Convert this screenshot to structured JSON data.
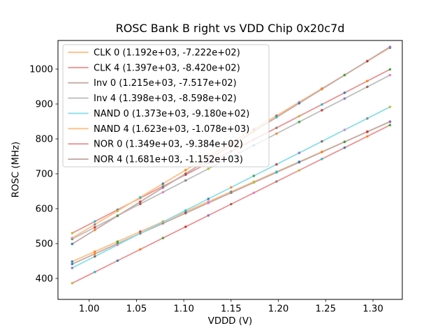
{
  "figure": {
    "title": "ROSC Bank B right vs VDD Chip 0x20c7d",
    "xlabel": "VDDD (V)",
    "ylabel": "ROSC (MHz)"
  },
  "chart_data": {
    "type": "line",
    "title": "ROSC Bank B right vs VDD Chip 0x20c7d",
    "xlabel": "VDDD (V)",
    "ylabel": "ROSC (MHz)",
    "xlim": [
      0.967,
      1.331
    ],
    "ylim": [
      340,
      1082
    ],
    "xticks": [
      1.0,
      1.05,
      1.1,
      1.15,
      1.2,
      1.25,
      1.3
    ],
    "xtick_labels": [
      "1.00",
      "1.05",
      "1.10",
      "1.15",
      "1.20",
      "1.25",
      "1.30"
    ],
    "yticks": [
      400,
      500,
      600,
      700,
      800,
      900,
      1000
    ],
    "ytick_labels": [
      "400",
      "500",
      "600",
      "700",
      "800",
      "900",
      "1000"
    ],
    "grid": false,
    "legend_position": "upper left",
    "x_start": 0.982,
    "x_end": 1.318,
    "n_points": 15,
    "series": [
      {
        "name": "CLK 0",
        "label": "CLK 0 (1.192e+03, -7.222e+02)",
        "slope": 1192,
        "intercept": -722.2,
        "color": "#ffbf86",
        "y_start": 448.4,
        "y_end": 848.9
      },
      {
        "name": "CLK 4",
        "label": "CLK 4 (1.397e+03, -8.420e+02)",
        "slope": 1397,
        "intercept": -842.0,
        "color": "#ea9393",
        "y_start": 529.9,
        "y_end": 999.2
      },
      {
        "name": "Inv 0",
        "label": "Inv 0 (1.215e+03, -7.517e+02)",
        "slope": 1215,
        "intercept": -751.7,
        "color": "#c5aaa5",
        "y_start": 441.4,
        "y_end": 849.7
      },
      {
        "name": "Inv 4",
        "label": "Inv 4 (1.398e+03, -8.598e+02)",
        "slope": 1398,
        "intercept": -859.8,
        "color": "#bfbfbf",
        "y_start": 513.0,
        "y_end": 982.8
      },
      {
        "name": "NAND 0",
        "label": "NAND 0 (1.373e+03, -9.180e+02)",
        "slope": 1373,
        "intercept": -918.0,
        "color": "#8bdee7",
        "y_start": 430.3,
        "y_end": 891.6
      },
      {
        "name": "NAND 4",
        "label": "NAND 4 (1.623e+03, -1.078e+03)",
        "slope": 1623,
        "intercept": -1078.0,
        "color": "#ffbf86",
        "y_start": 515.8,
        "y_end": 1061.1
      },
      {
        "name": "NOR 0",
        "label": "NOR 0 (1.349e+03, -9.384e+02)",
        "slope": 1349,
        "intercept": -938.4,
        "color": "#ea9393",
        "y_start": 386.3,
        "y_end": 839.6
      },
      {
        "name": "NOR 4",
        "label": "NOR 4 (1.681e+03, -1.152e+03)",
        "slope": 1681,
        "intercept": -1152.0,
        "color": "#c5aaa5",
        "y_start": 498.7,
        "y_end": 1063.6
      }
    ],
    "style": {
      "line_width": 1.8,
      "marker_radius": 1.8,
      "marker_palette": [
        "#1f77b4",
        "#ff7f0e",
        "#2ca02c",
        "#d62728",
        "#9467bd",
        "#8c564b",
        "#e377c2",
        "#7f7f7f",
        "#bcbd22",
        "#17becf"
      ],
      "marker_offsets": [
        0,
        8,
        0,
        2,
        4,
        6,
        8,
        0
      ],
      "spine_color": "#000000",
      "tick_color": "#000000",
      "legend_border_color": "#cccccc",
      "legend_background": "#ffffff"
    }
  }
}
